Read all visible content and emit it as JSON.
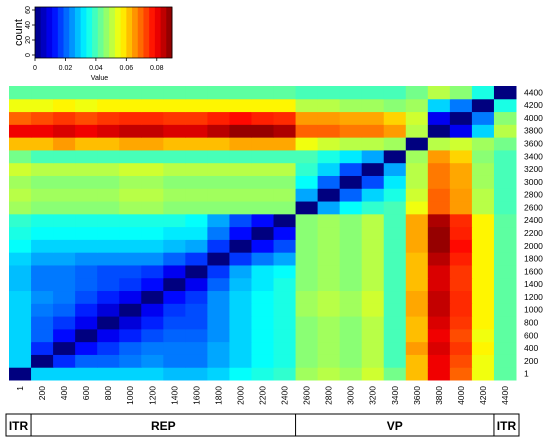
{
  "chart_data": {
    "type": "heatmap",
    "title": "",
    "color_key": {
      "title": "Value",
      "hist_ylabel": "count",
      "hist_yticks": [
        "0",
        "20",
        "40",
        "60"
      ],
      "ticks": [
        {
          "value": 0,
          "label": "0"
        },
        {
          "value": 0.02,
          "label": "0.02"
        },
        {
          "value": 0.04,
          "label": "0.04"
        },
        {
          "value": 0.06,
          "label": "0.06"
        },
        {
          "value": 0.08,
          "label": "0.08"
        }
      ],
      "range": [
        0,
        0.09
      ],
      "colors": [
        "#00007f",
        "#0000ff",
        "#007fff",
        "#00ffff",
        "#7fff7f",
        "#ffff00",
        "#ff7f00",
        "#ff0000",
        "#7f0000"
      ]
    },
    "x_labels": [
      "1",
      "200",
      "400",
      "600",
      "800",
      "1000",
      "1200",
      "1400",
      "1600",
      "1800",
      "2000",
      "2200",
      "2400",
      "2600",
      "2800",
      "3000",
      "3200",
      "3400",
      "3600",
      "3800",
      "4000",
      "4200",
      "4400"
    ],
    "y_labels": [
      "1",
      "200",
      "400",
      "600",
      "800",
      "1000",
      "1200",
      "1400",
      "1600",
      "1800",
      "2000",
      "2200",
      "2400",
      "2600",
      "2800",
      "3000",
      "3200",
      "3400",
      "3600",
      "3800",
      "4000",
      "4200",
      "4400"
    ],
    "values": [
      [
        0.0,
        0.03,
        0.03,
        0.03,
        0.03,
        0.03,
        0.03,
        0.028,
        0.028,
        0.03,
        0.034,
        0.036,
        0.038,
        0.048,
        0.05,
        0.048,
        0.052,
        0.044,
        0.062,
        0.08,
        0.07,
        0.055,
        0.042
      ],
      [
        0.03,
        0.0,
        0.015,
        0.02,
        0.02,
        0.022,
        0.024,
        0.022,
        0.022,
        0.026,
        0.03,
        0.034,
        0.036,
        0.046,
        0.048,
        0.046,
        0.05,
        0.04,
        0.062,
        0.08,
        0.072,
        0.055,
        0.042
      ],
      [
        0.03,
        0.015,
        0.0,
        0.012,
        0.016,
        0.02,
        0.022,
        0.022,
        0.022,
        0.026,
        0.03,
        0.034,
        0.036,
        0.046,
        0.048,
        0.046,
        0.05,
        0.04,
        0.065,
        0.082,
        0.074,
        0.057,
        0.042
      ],
      [
        0.03,
        0.02,
        0.012,
        0.0,
        0.01,
        0.014,
        0.018,
        0.02,
        0.02,
        0.024,
        0.03,
        0.034,
        0.036,
        0.046,
        0.048,
        0.046,
        0.05,
        0.04,
        0.062,
        0.08,
        0.072,
        0.055,
        0.042
      ],
      [
        0.03,
        0.02,
        0.016,
        0.01,
        0.0,
        0.008,
        0.014,
        0.018,
        0.018,
        0.024,
        0.03,
        0.034,
        0.036,
        0.046,
        0.048,
        0.046,
        0.05,
        0.04,
        0.062,
        0.082,
        0.074,
        0.057,
        0.042
      ],
      [
        0.03,
        0.022,
        0.02,
        0.014,
        0.008,
        0.0,
        0.01,
        0.016,
        0.018,
        0.024,
        0.03,
        0.034,
        0.036,
        0.048,
        0.05,
        0.048,
        0.052,
        0.04,
        0.064,
        0.084,
        0.075,
        0.057,
        0.042
      ],
      [
        0.03,
        0.024,
        0.022,
        0.018,
        0.014,
        0.01,
        0.0,
        0.012,
        0.016,
        0.024,
        0.03,
        0.034,
        0.036,
        0.048,
        0.05,
        0.048,
        0.052,
        0.04,
        0.064,
        0.084,
        0.075,
        0.057,
        0.042
      ],
      [
        0.028,
        0.022,
        0.022,
        0.02,
        0.018,
        0.016,
        0.012,
        0.0,
        0.01,
        0.02,
        0.028,
        0.032,
        0.036,
        0.046,
        0.048,
        0.046,
        0.05,
        0.04,
        0.062,
        0.082,
        0.074,
        0.057,
        0.042
      ],
      [
        0.028,
        0.022,
        0.022,
        0.02,
        0.018,
        0.018,
        0.016,
        0.01,
        0.0,
        0.016,
        0.026,
        0.032,
        0.034,
        0.046,
        0.048,
        0.046,
        0.05,
        0.04,
        0.062,
        0.082,
        0.074,
        0.057,
        0.042
      ],
      [
        0.03,
        0.026,
        0.026,
        0.024,
        0.024,
        0.024,
        0.024,
        0.02,
        0.016,
        0.0,
        0.016,
        0.022,
        0.026,
        0.046,
        0.048,
        0.046,
        0.05,
        0.04,
        0.062,
        0.085,
        0.076,
        0.057,
        0.042
      ],
      [
        0.034,
        0.03,
        0.03,
        0.03,
        0.03,
        0.03,
        0.03,
        0.028,
        0.026,
        0.016,
        0.0,
        0.012,
        0.018,
        0.046,
        0.048,
        0.046,
        0.05,
        0.04,
        0.064,
        0.088,
        0.078,
        0.057,
        0.042
      ],
      [
        0.036,
        0.034,
        0.034,
        0.034,
        0.034,
        0.034,
        0.034,
        0.032,
        0.032,
        0.022,
        0.012,
        0.0,
        0.012,
        0.046,
        0.048,
        0.046,
        0.05,
        0.04,
        0.064,
        0.088,
        0.076,
        0.057,
        0.042
      ],
      [
        0.038,
        0.036,
        0.036,
        0.036,
        0.036,
        0.036,
        0.036,
        0.036,
        0.034,
        0.026,
        0.018,
        0.012,
        0.0,
        0.046,
        0.048,
        0.046,
        0.05,
        0.04,
        0.064,
        0.086,
        0.075,
        0.057,
        0.042
      ],
      [
        0.048,
        0.046,
        0.046,
        0.046,
        0.046,
        0.048,
        0.048,
        0.046,
        0.046,
        0.046,
        0.046,
        0.046,
        0.046,
        0.0,
        0.026,
        0.034,
        0.038,
        0.04,
        0.055,
        0.07,
        0.065,
        0.05,
        0.04
      ],
      [
        0.05,
        0.048,
        0.048,
        0.048,
        0.048,
        0.05,
        0.05,
        0.048,
        0.048,
        0.048,
        0.048,
        0.048,
        0.048,
        0.026,
        0.0,
        0.02,
        0.03,
        0.036,
        0.052,
        0.07,
        0.065,
        0.05,
        0.04
      ],
      [
        0.048,
        0.046,
        0.046,
        0.046,
        0.046,
        0.048,
        0.048,
        0.046,
        0.046,
        0.046,
        0.046,
        0.046,
        0.046,
        0.034,
        0.02,
        0.0,
        0.018,
        0.032,
        0.05,
        0.068,
        0.064,
        0.048,
        0.04
      ],
      [
        0.052,
        0.05,
        0.05,
        0.05,
        0.05,
        0.052,
        0.052,
        0.05,
        0.05,
        0.05,
        0.05,
        0.05,
        0.05,
        0.038,
        0.03,
        0.018,
        0.0,
        0.026,
        0.05,
        0.068,
        0.064,
        0.048,
        0.04
      ],
      [
        0.044,
        0.04,
        0.04,
        0.04,
        0.04,
        0.04,
        0.04,
        0.04,
        0.04,
        0.04,
        0.04,
        0.04,
        0.04,
        0.04,
        0.036,
        0.032,
        0.026,
        0.0,
        0.048,
        0.065,
        0.06,
        0.046,
        0.04
      ],
      [
        0.062,
        0.062,
        0.065,
        0.062,
        0.062,
        0.064,
        0.064,
        0.062,
        0.062,
        0.062,
        0.064,
        0.064,
        0.064,
        0.055,
        0.052,
        0.05,
        0.05,
        0.048,
        0.0,
        0.05,
        0.052,
        0.048,
        0.044
      ],
      [
        0.08,
        0.08,
        0.082,
        0.08,
        0.082,
        0.084,
        0.084,
        0.082,
        0.082,
        0.085,
        0.088,
        0.088,
        0.086,
        0.07,
        0.07,
        0.068,
        0.068,
        0.065,
        0.05,
        0.0,
        0.01,
        0.03,
        0.05
      ],
      [
        0.07,
        0.072,
        0.074,
        0.072,
        0.074,
        0.075,
        0.075,
        0.074,
        0.074,
        0.076,
        0.078,
        0.076,
        0.075,
        0.065,
        0.065,
        0.064,
        0.064,
        0.06,
        0.052,
        0.01,
        0.0,
        0.022,
        0.046
      ],
      [
        0.055,
        0.055,
        0.057,
        0.055,
        0.057,
        0.057,
        0.057,
        0.057,
        0.057,
        0.057,
        0.057,
        0.057,
        0.057,
        0.05,
        0.05,
        0.048,
        0.048,
        0.046,
        0.048,
        0.03,
        0.022,
        0.0,
        0.036
      ],
      [
        0.042,
        0.042,
        0.042,
        0.042,
        0.042,
        0.042,
        0.042,
        0.042,
        0.042,
        0.042,
        0.042,
        0.042,
        0.042,
        0.04,
        0.04,
        0.04,
        0.04,
        0.04,
        0.044,
        0.05,
        0.046,
        0.036,
        0.0
      ]
    ],
    "groups": [
      {
        "label": "ITR",
        "from": 0,
        "to": 0
      },
      {
        "label": "REP",
        "from": 1,
        "to": 12
      },
      {
        "label": "VP",
        "from": 13,
        "to": 21
      },
      {
        "label": "ITR",
        "from": 22,
        "to": 22
      }
    ]
  }
}
